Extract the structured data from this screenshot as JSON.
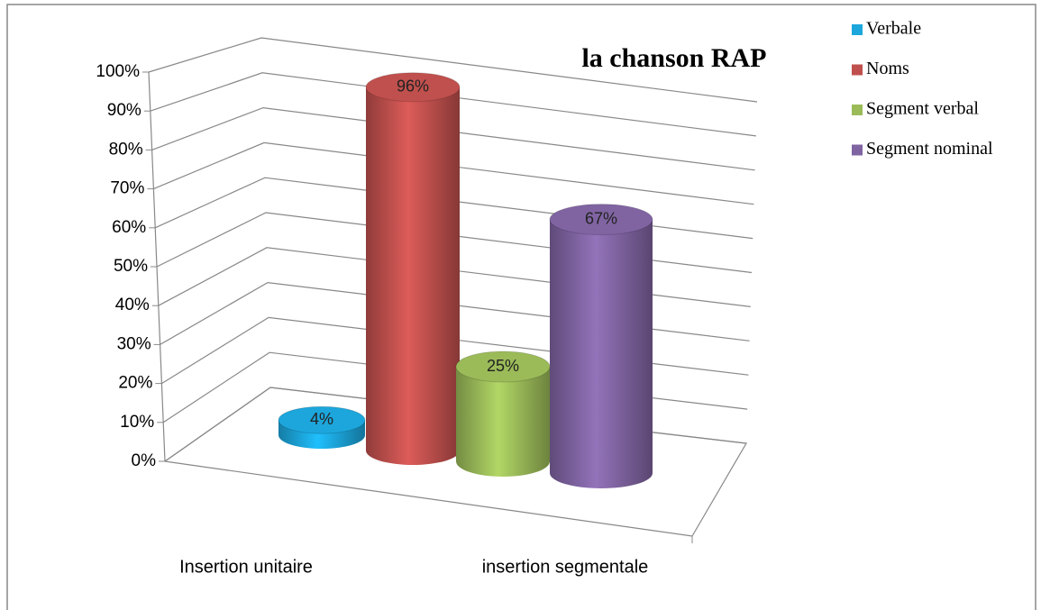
{
  "chart_data": {
    "type": "bar3d",
    "title": "la chanson RAP",
    "categories": [
      "Insertion unitaire",
      "insertion segmentale"
    ],
    "series": [
      {
        "name": "Verbale",
        "color": "#1ca6dc",
        "values": [
          4,
          null
        ],
        "value_labels": [
          "4%",
          null
        ]
      },
      {
        "name": "Noms",
        "color": "#c0504d",
        "values": [
          96,
          null
        ],
        "value_labels": [
          "96%",
          null
        ]
      },
      {
        "name": "Segment verbal",
        "color": "#9bbb59",
        "values": [
          null,
          25
        ],
        "value_labels": [
          null,
          "25%"
        ]
      },
      {
        "name": "Segment nominal",
        "color": "#8064a2",
        "values": [
          null,
          67
        ],
        "value_labels": [
          null,
          "67%"
        ]
      }
    ],
    "ylim": [
      0,
      100
    ],
    "yticks": [
      {
        "value": 0,
        "label": "0%"
      },
      {
        "value": 10,
        "label": "10%"
      },
      {
        "value": 20,
        "label": "20%"
      },
      {
        "value": 30,
        "label": "30%"
      },
      {
        "value": 40,
        "label": "40%"
      },
      {
        "value": 50,
        "label": "50%"
      },
      {
        "value": 60,
        "label": "60%"
      },
      {
        "value": 70,
        "label": "70%"
      },
      {
        "value": 80,
        "label": "80%"
      },
      {
        "value": 90,
        "label": "90%"
      },
      {
        "value": 100,
        "label": "100%"
      }
    ],
    "grid": true,
    "legend": "right"
  }
}
